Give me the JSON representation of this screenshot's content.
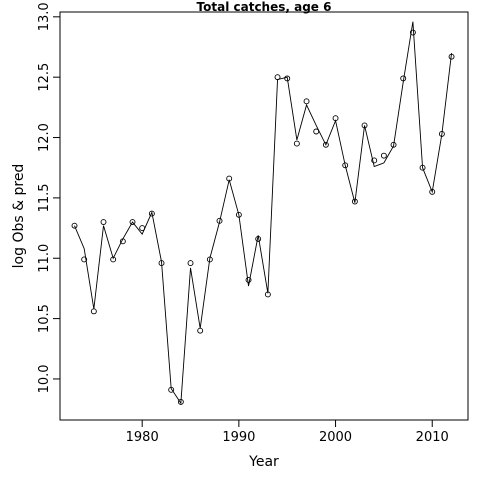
{
  "chart_data": {
    "type": "line",
    "title": "Total catches, age 6",
    "xlabel": "Year",
    "ylabel": "log Obs & pred",
    "xlim": [
      1971.5,
      2013.7
    ],
    "ylim": [
      9.66,
      13.04
    ],
    "x_ticks": [
      1980,
      1990,
      2000,
      2010
    ],
    "y_ticks": [
      10.0,
      10.5,
      11.0,
      11.5,
      12.0,
      12.5,
      13.0
    ],
    "x_tick_labels": [
      "1980",
      "1990",
      "2000",
      "2010"
    ],
    "y_tick_labels": [
      "10.0",
      "10.5",
      "11.0",
      "11.5",
      "12.0",
      "12.5",
      "13.0"
    ],
    "grid": false,
    "series": [
      {
        "style": "points",
        "x": [
          1973,
          1974,
          1975,
          1976,
          1977,
          1978,
          1979,
          1980,
          1981,
          1982,
          1983,
          1984,
          1985,
          1986,
          1987,
          1988,
          1989,
          1990,
          1991,
          1992,
          1993,
          1994,
          1995,
          1996,
          1997,
          1998,
          1999,
          2000,
          2001,
          2002,
          2003,
          2004,
          2005,
          2006,
          2007,
          2008,
          2009,
          2010,
          2011,
          2012
        ],
        "values": [
          11.27,
          10.99,
          10.56,
          11.3,
          10.99,
          11.14,
          11.3,
          11.25,
          11.37,
          10.96,
          9.91,
          9.81,
          10.96,
          10.4,
          10.99,
          11.31,
          11.66,
          11.36,
          10.82,
          11.16,
          10.7,
          12.5,
          12.49,
          11.95,
          12.3,
          12.05,
          11.94,
          12.16,
          11.77,
          11.47,
          12.1,
          11.81,
          11.85,
          11.94,
          12.49,
          12.87,
          11.75,
          11.55,
          12.03,
          12.67
        ]
      },
      {
        "style": "line",
        "x": [
          1973,
          1974,
          1975,
          1976,
          1977,
          1978,
          1979,
          1980,
          1981,
          1982,
          1983,
          1984,
          1985,
          1986,
          1987,
          1988,
          1989,
          1990,
          1991,
          1992,
          1993,
          1994,
          1995,
          1996,
          1997,
          1998,
          1999,
          2000,
          2001,
          2002,
          2003,
          2004,
          2005,
          2006,
          2007,
          2008,
          2009,
          2010,
          2011,
          2012
        ],
        "values": [
          11.27,
          11.08,
          10.58,
          11.27,
          11.0,
          11.16,
          11.3,
          11.2,
          11.38,
          10.97,
          9.92,
          9.8,
          10.92,
          10.42,
          11.0,
          11.3,
          11.65,
          11.36,
          10.77,
          11.19,
          10.71,
          12.48,
          12.5,
          11.98,
          12.27,
          12.1,
          11.94,
          12.14,
          11.77,
          11.46,
          12.1,
          11.76,
          11.79,
          11.93,
          12.46,
          12.96,
          11.75,
          11.55,
          12.03,
          12.7
        ]
      }
    ]
  }
}
